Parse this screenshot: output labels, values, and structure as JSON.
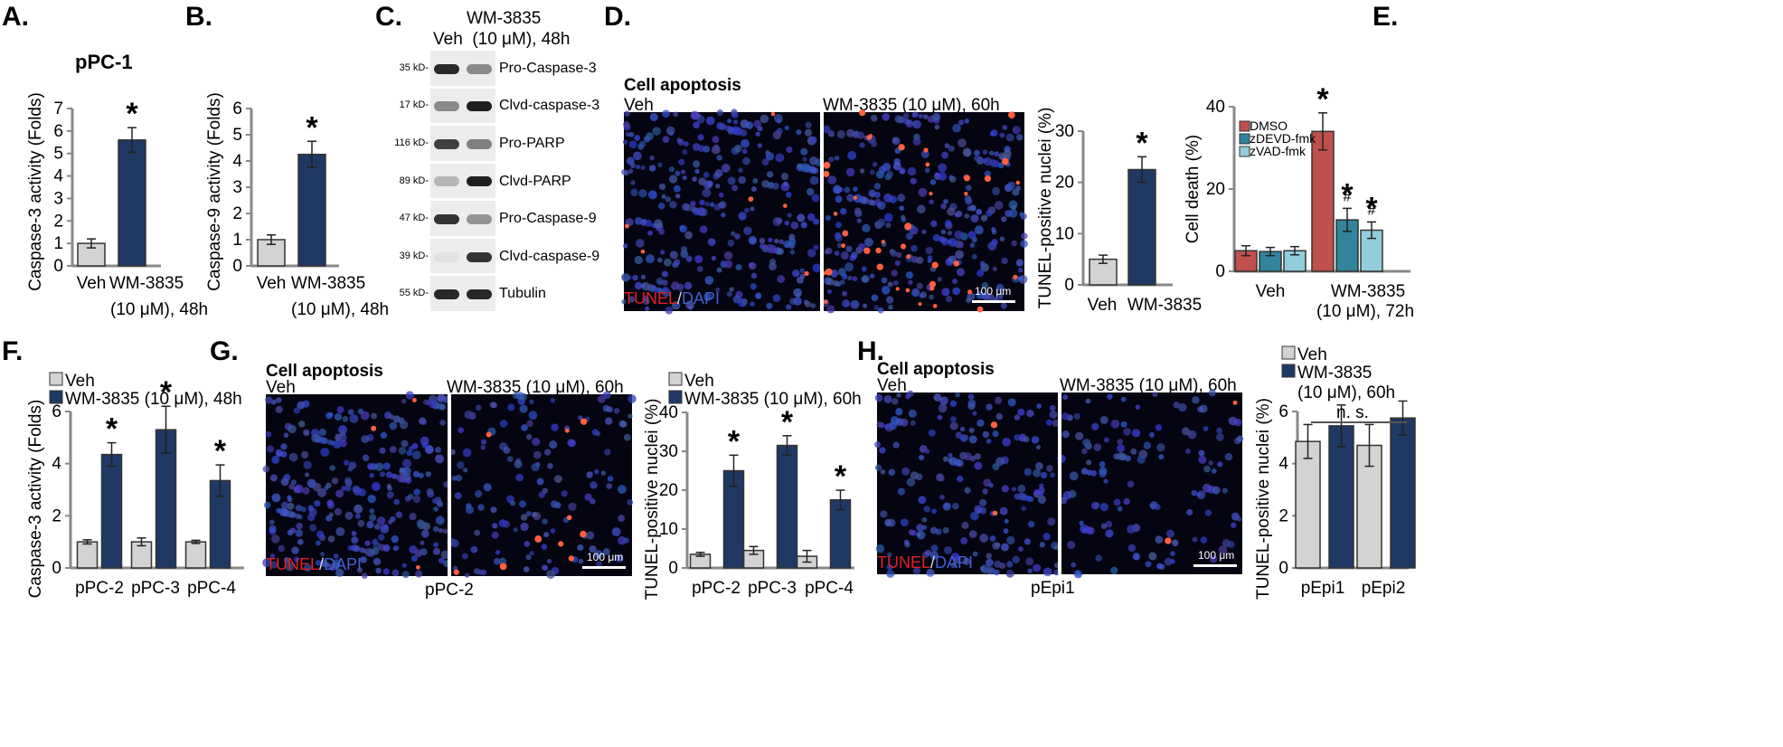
{
  "colors": {
    "veh": "#d3d3d3",
    "wm": "#1f3864",
    "dmso": "#c0504d",
    "zdevd": "#31849b",
    "zvad": "#92cddc",
    "axis": "#888888"
  },
  "panels": {
    "a": {
      "letter": "A.",
      "title": "pPC-1"
    },
    "b": {
      "letter": "B."
    },
    "c": {
      "letter": "C.",
      "header_line1": "WM-3835",
      "header_line2": "Veh  (10 μM), 48h",
      "rows": [
        {
          "mw": "35 kD-",
          "label": "Pro-Caspase-3",
          "veh": 0.9,
          "wm": 0.45
        },
        {
          "mw": "17 kD-",
          "label": "Clvd-caspase-3",
          "veh": 0.45,
          "wm": 0.95
        },
        {
          "mw": "116 kD-",
          "label": "Pro-PARP",
          "veh": 0.8,
          "wm": 0.5
        },
        {
          "mw": "89 kD-",
          "label": "Clvd-PARP",
          "veh": 0.25,
          "wm": 0.95
        },
        {
          "mw": "47 kD-",
          "label": "Pro-Caspase-9",
          "veh": 0.85,
          "wm": 0.4
        },
        {
          "mw": "39 kD-",
          "label": "Clvd-caspase-9",
          "veh": 0.05,
          "wm": 0.85
        },
        {
          "mw": "55 kD-",
          "label": "Tubulin",
          "veh": 0.9,
          "wm": 0.9
        }
      ]
    },
    "d": {
      "letter": "D.",
      "title": "Cell apoptosis",
      "left_label": "Veh",
      "right_label": "WM-3835 (10 μM), 60h",
      "scale": "100 μm",
      "tunel": "TUNEL",
      "slash": "/",
      "dapi": "DAPI"
    },
    "e": {
      "letter": "E."
    },
    "f": {
      "letter": "F."
    },
    "g": {
      "letter": "G.",
      "title": "Cell apoptosis",
      "left_label": "Veh",
      "right_label": "WM-3835 (10 μM), 60h",
      "scale": "100 μm",
      "tunel": "TUNEL",
      "slash": "/",
      "dapi": "DAPI",
      "caption": "pPC-2"
    },
    "h": {
      "letter": "H.",
      "title": "Cell apoptosis",
      "left_label": "Veh",
      "right_label": "WM-3835 (10 μM), 60h",
      "scale": "100 μm",
      "tunel": "TUNEL",
      "slash": "/",
      "dapi": "DAPI",
      "caption": "pEpi1"
    }
  },
  "chart_data": [
    {
      "id": "A",
      "type": "bar",
      "ylabel": "Caspase-3 activity (Folds)",
      "ylim": [
        0,
        7
      ],
      "yticks": [
        0,
        1,
        2,
        3,
        4,
        5,
        6,
        7
      ],
      "categories": [
        "Veh",
        "WM-3835"
      ],
      "xlabel_line2": "(10 μM), 48h",
      "values": [
        1.0,
        5.6
      ],
      "errors": [
        0.2,
        0.55
      ],
      "annotations": [
        "",
        "*"
      ]
    },
    {
      "id": "B",
      "type": "bar",
      "ylabel": "Caspase-9 activity (Folds)",
      "ylim": [
        0,
        6
      ],
      "yticks": [
        0,
        1,
        2,
        3,
        4,
        5,
        6
      ],
      "categories": [
        "Veh",
        "WM-3835"
      ],
      "xlabel_line2": "(10 μM), 48h",
      "values": [
        1.0,
        4.25
      ],
      "errors": [
        0.18,
        0.5
      ],
      "annotations": [
        "",
        "*"
      ]
    },
    {
      "id": "D",
      "type": "bar",
      "ylabel": "TUNEL-positive nuclei (%)",
      "ylim": [
        0,
        30
      ],
      "yticks": [
        0,
        10,
        20,
        30
      ],
      "categories": [
        "Veh",
        "WM-3835"
      ],
      "values": [
        5.0,
        22.5
      ],
      "errors": [
        0.8,
        2.5
      ],
      "annotations": [
        "",
        "*"
      ]
    },
    {
      "id": "E",
      "type": "bar",
      "ylabel": "Cell death (%)",
      "ylim": [
        0,
        40
      ],
      "yticks": [
        0,
        20,
        40
      ],
      "categories": [
        "Veh",
        "WM-3835"
      ],
      "xlabel_line2": "(10 μM), 72h",
      "series": [
        {
          "name": "DMSO",
          "values": [
            5.0,
            34.0
          ],
          "errors": [
            1.2,
            4.5
          ],
          "annotations": [
            "",
            "*"
          ]
        },
        {
          "name": "zDEVD-fmk",
          "values": [
            4.8,
            12.5
          ],
          "errors": [
            1.0,
            2.8
          ],
          "annotations": [
            "",
            "*#"
          ]
        },
        {
          "name": "zVAD-fmk",
          "values": [
            5.0,
            10.0
          ],
          "errors": [
            1.0,
            2.0
          ],
          "annotations": [
            "",
            "*#"
          ]
        }
      ]
    },
    {
      "id": "F",
      "type": "bar",
      "ylabel": "Caspase-3 activity (Folds)",
      "ylim": [
        0,
        6
      ],
      "yticks": [
        0,
        2,
        4,
        6
      ],
      "categories": [
        "pPC-2",
        "pPC-3",
        "pPC-4"
      ],
      "series": [
        {
          "name": "Veh",
          "values": [
            1.0,
            1.0,
            1.0
          ],
          "errors": [
            0.08,
            0.15,
            0.06
          ],
          "annotations": [
            "",
            "",
            ""
          ]
        },
        {
          "name": "WM-3835 (10 μM), 48h",
          "values": [
            4.35,
            5.3,
            3.35
          ],
          "errors": [
            0.45,
            0.9,
            0.6
          ],
          "annotations": [
            "*",
            "*",
            "*"
          ]
        }
      ]
    },
    {
      "id": "G",
      "type": "bar",
      "ylabel": "TUNEL-positive nuclei (%)",
      "ylim": [
        0,
        40
      ],
      "yticks": [
        0,
        10,
        20,
        30,
        40
      ],
      "categories": [
        "pPC-2",
        "pPC-3",
        "pPC-4"
      ],
      "series": [
        {
          "name": "Veh",
          "values": [
            3.5,
            4.5,
            3.0
          ],
          "errors": [
            0.5,
            1.0,
            1.5
          ],
          "annotations": [
            "",
            "",
            ""
          ]
        },
        {
          "name": "WM-3835 (10 μM), 60h",
          "values": [
            25.0,
            31.5,
            17.5
          ],
          "errors": [
            4.0,
            2.5,
            2.5
          ],
          "annotations": [
            "*",
            "*",
            "*"
          ]
        }
      ]
    },
    {
      "id": "H",
      "type": "bar",
      "ylabel": "TUNEL-positive nuclei (%)",
      "ylim": [
        0,
        6
      ],
      "yticks": [
        0,
        2,
        4,
        6
      ],
      "categories": [
        "pEpi1",
        "pEpi2"
      ],
      "legend_line3": "(10 μM), 60h",
      "significance": "n. s.",
      "series": [
        {
          "name": "Veh",
          "values": [
            4.85,
            4.7
          ],
          "errors": [
            0.65,
            0.8
          ],
          "annotations": [
            "",
            ""
          ]
        },
        {
          "name": "WM-3835",
          "values": [
            5.45,
            5.75
          ],
          "errors": [
            0.8,
            0.65
          ],
          "annotations": [
            "",
            ""
          ]
        }
      ]
    }
  ]
}
